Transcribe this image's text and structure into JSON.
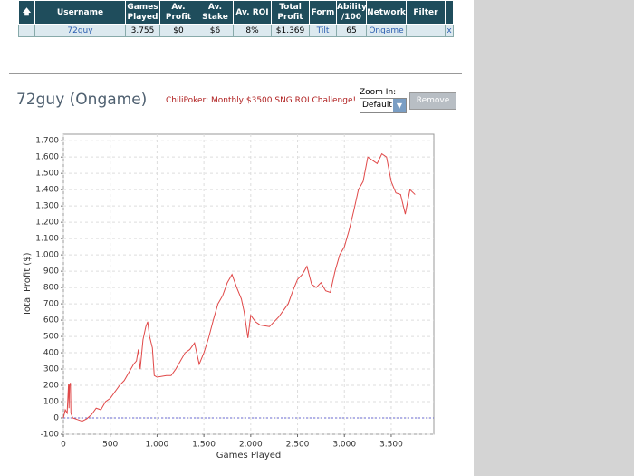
{
  "table": {
    "headers": [
      "Username",
      "Games Played",
      "Av. Profit",
      "Av. Stake",
      "Av. ROI",
      "Total Profit",
      "Form",
      "Ability /100",
      "Network",
      "Filter"
    ],
    "rows": [
      [
        "72guy",
        "3.755",
        "$0",
        "$6",
        "8%",
        "$1.369",
        "Tilt",
        "65",
        "Ongame",
        "x"
      ]
    ]
  },
  "header": {
    "title": "72guy (Ongame)",
    "promo": "ChiliPoker: Monthly $3500 SNG ROI Challenge!",
    "zoom_label": "Zoom In:",
    "zoom_option": "Default",
    "remove_button": "Remove"
  },
  "chart_data": {
    "type": "line",
    "x_label": "Games Played",
    "y_label": "Total Profit ($)",
    "xlim": [
      0,
      3955
    ],
    "ylim": [
      -100,
      1740
    ],
    "xticks": [
      0,
      500,
      {
        "value": 1000,
        "label": "1.000"
      },
      {
        "value": 1500,
        "label": "1.500"
      },
      {
        "value": 2000,
        "label": "2.000"
      },
      {
        "value": 2500,
        "label": "2.500"
      },
      {
        "value": 3000,
        "label": "3.000"
      },
      {
        "value": 3500,
        "label": "3.500"
      }
    ],
    "yticks": [
      -100,
      0,
      100,
      200,
      300,
      400,
      500,
      600,
      700,
      800,
      900,
      {
        "value": 1000,
        "label": "1.000"
      },
      {
        "value": 1100,
        "label": "1.100"
      },
      {
        "value": 1200,
        "label": "1.200"
      },
      {
        "value": 1300,
        "label": "1.300"
      },
      {
        "value": 1400,
        "label": "1.400"
      },
      {
        "value": 1500,
        "label": "1.500"
      },
      {
        "value": 1600,
        "label": "1.600"
      },
      {
        "value": 1700,
        "label": "1.700"
      }
    ],
    "grid": true,
    "series": [
      {
        "color": "#e04848",
        "x": [
          0,
          20,
          40,
          55,
          60,
          65,
          75,
          80,
          100,
          150,
          200,
          250,
          300,
          350,
          400,
          450,
          500,
          550,
          600,
          650,
          700,
          750,
          780,
          800,
          820,
          850,
          880,
          900,
          920,
          950,
          970,
          1000,
          1100,
          1150,
          1200,
          1250,
          1300,
          1350,
          1400,
          1450,
          1500,
          1550,
          1600,
          1650,
          1700,
          1750,
          1800,
          1850,
          1900,
          1930,
          1950,
          1970,
          2000,
          2050,
          2100,
          2200,
          2300,
          2400,
          2450,
          2500,
          2550,
          2600,
          2650,
          2700,
          2750,
          2800,
          2850,
          2900,
          2950,
          3000,
          3050,
          3100,
          3150,
          3200,
          3250,
          3300,
          3350,
          3400,
          3450,
          3500,
          3550,
          3600,
          3650,
          3700,
          3755
        ],
        "values": [
          0,
          50,
          30,
          210,
          60,
          200,
          215,
          30,
          0,
          -10,
          -20,
          -5,
          20,
          60,
          50,
          100,
          120,
          160,
          200,
          230,
          280,
          330,
          350,
          420,
          300,
          480,
          560,
          590,
          500,
          430,
          260,
          250,
          260,
          260,
          300,
          350,
          400,
          420,
          460,
          330,
          400,
          490,
          600,
          700,
          750,
          830,
          880,
          800,
          730,
          650,
          570,
          490,
          630,
          590,
          570,
          560,
          620,
          700,
          780,
          850,
          880,
          930,
          820,
          800,
          830,
          780,
          770,
          900,
          1000,
          1050,
          1150,
          1270,
          1400,
          1450,
          1600,
          1580,
          1560,
          1620,
          1600,
          1450,
          1380,
          1370,
          1250,
          1400,
          1370
        ]
      }
    ]
  }
}
